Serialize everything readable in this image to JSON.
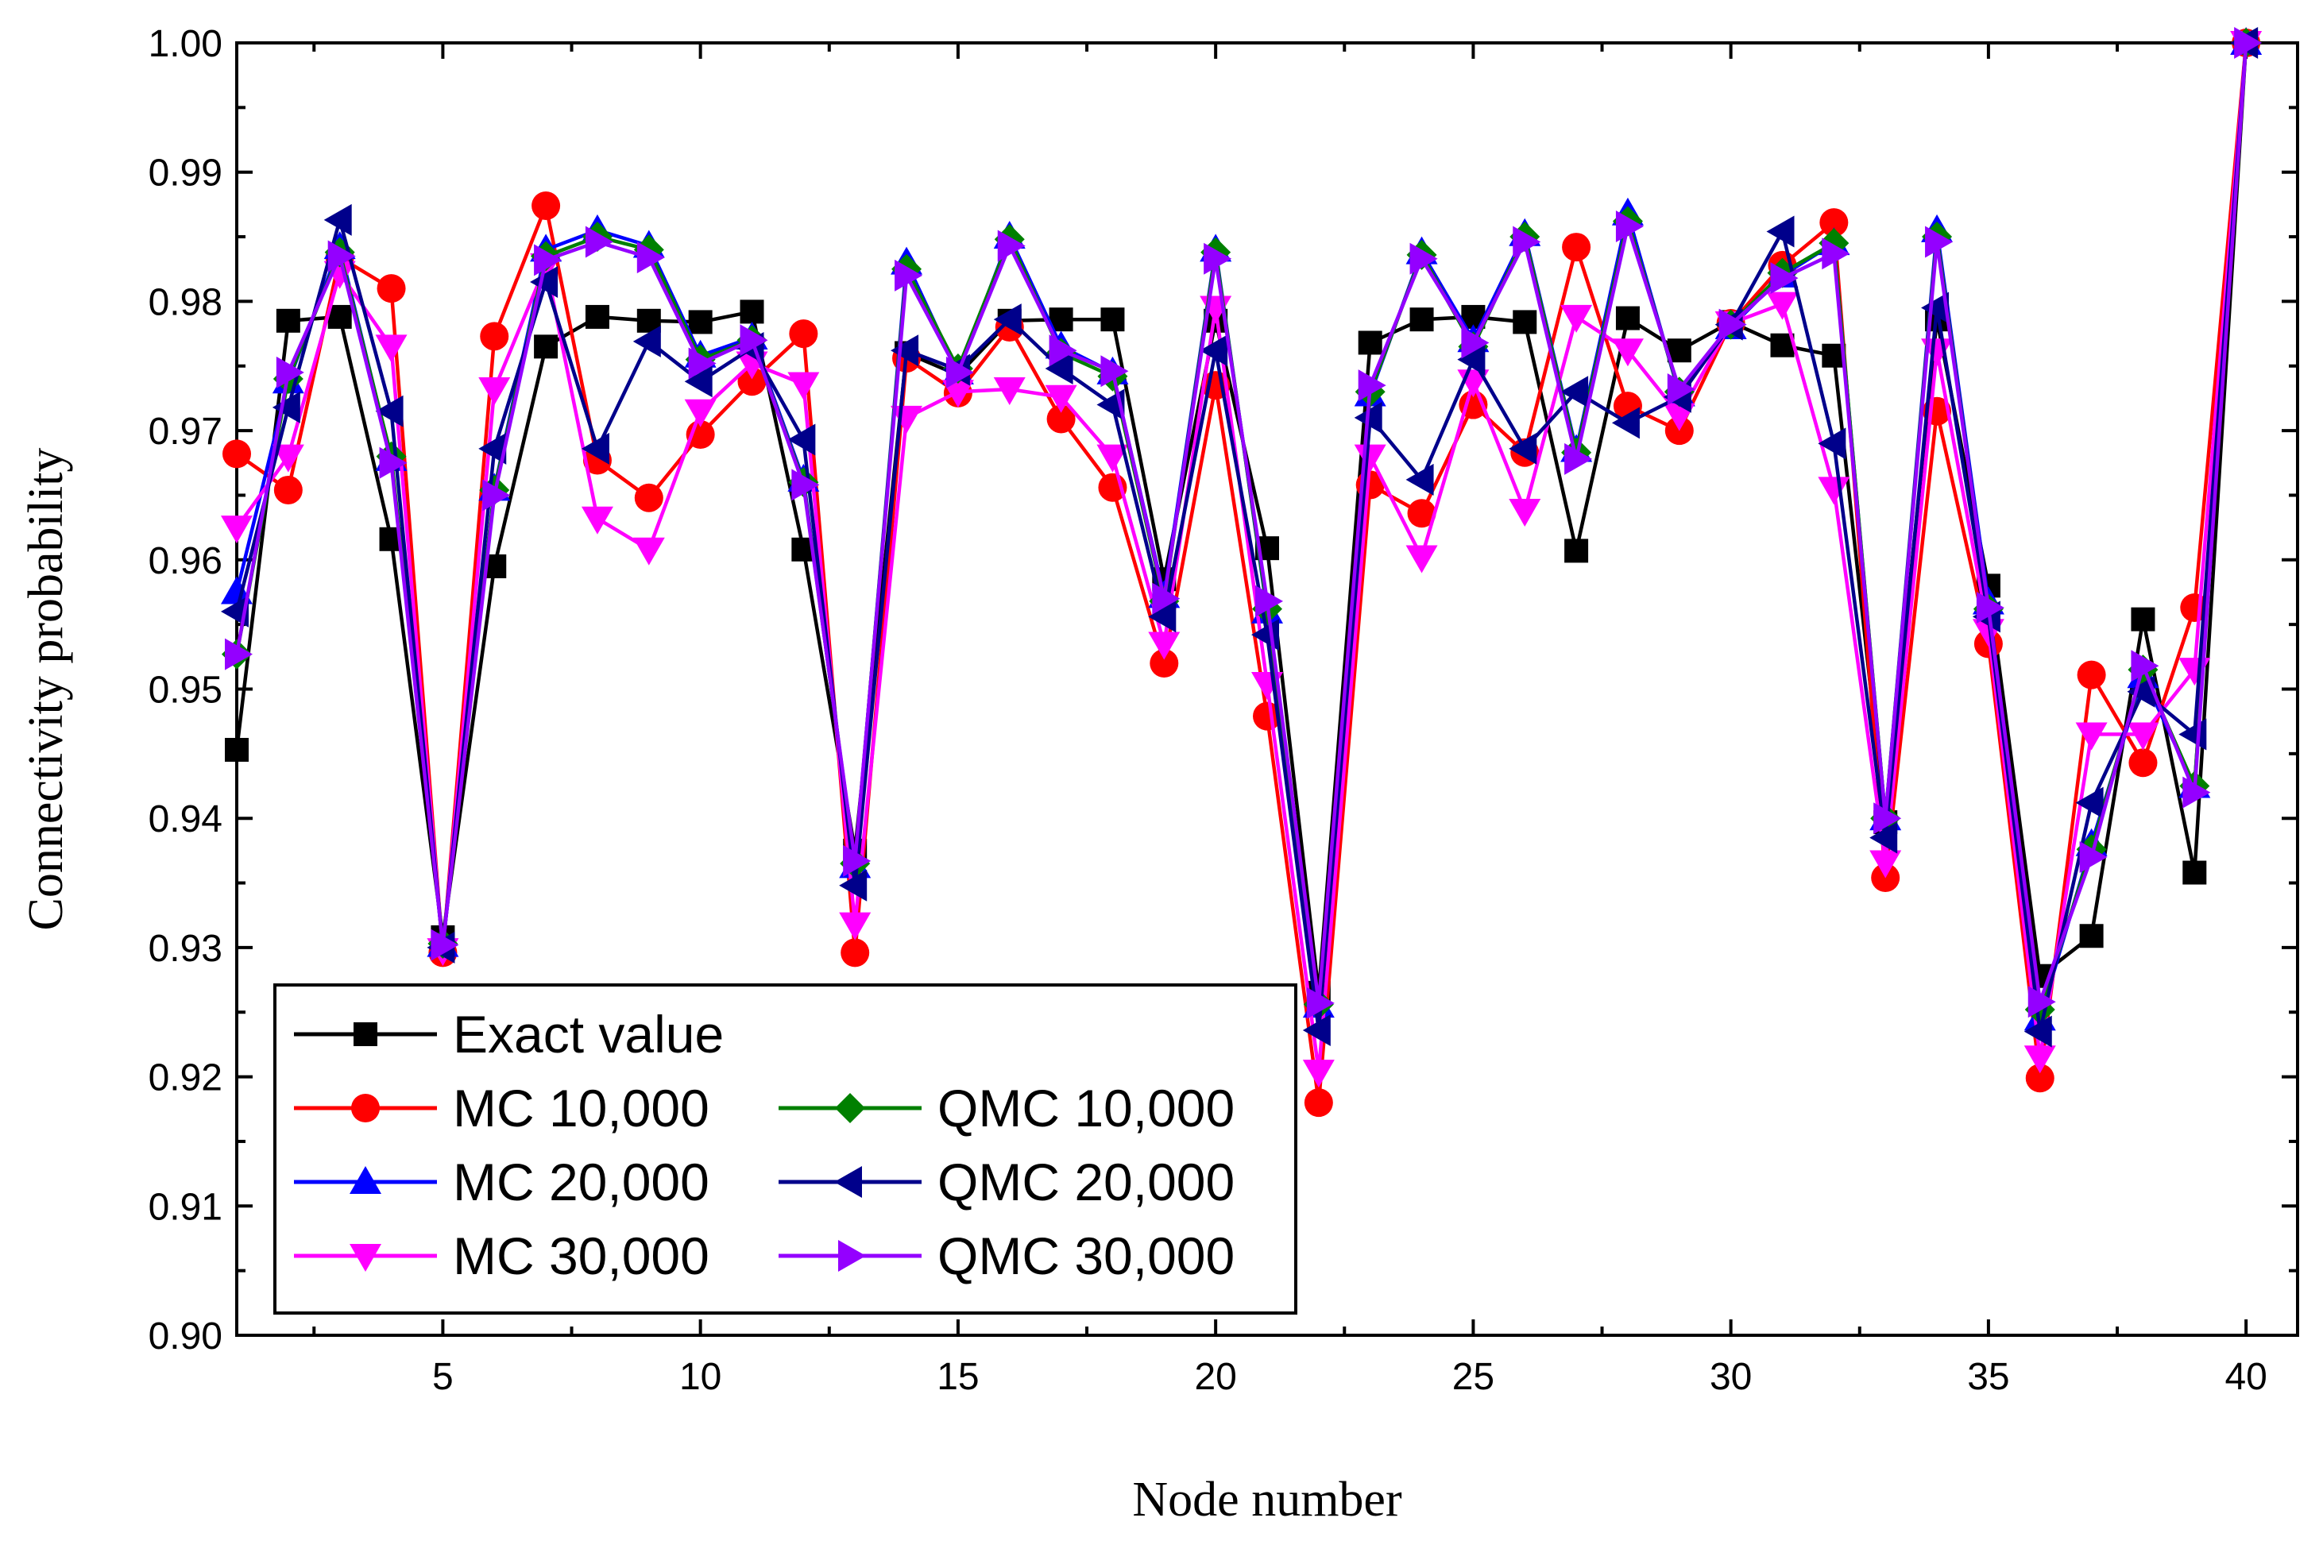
{
  "chart_data": {
    "type": "line",
    "title": "",
    "xlabel": "Node number",
    "ylabel": "Connectivity probability",
    "xlim": [
      1,
      41
    ],
    "ylim": [
      0.9,
      1.0
    ],
    "x_ticks": [
      5,
      10,
      15,
      20,
      25,
      30,
      35,
      40
    ],
    "x_tick_labels": [
      "5",
      "10",
      "15",
      "20",
      "25",
      "30",
      "35",
      "40"
    ],
    "y_ticks": [
      0.9,
      0.91,
      0.92,
      0.93,
      0.94,
      0.95,
      0.96,
      0.97,
      0.98,
      0.99,
      1.0
    ],
    "y_tick_labels": [
      "0.90",
      "0.91",
      "0.92",
      "0.93",
      "0.94",
      "0.95",
      "0.96",
      "0.97",
      "0.98",
      "0.99",
      "1.00"
    ],
    "grid": false,
    "legend_position": "bottom-left",
    "x": [
      1,
      2,
      3,
      4,
      5,
      6,
      7,
      8,
      9,
      10,
      11,
      12,
      13,
      14,
      15,
      16,
      17,
      18,
      19,
      20,
      21,
      22,
      23,
      24,
      25,
      26,
      27,
      28,
      29,
      30,
      31,
      32,
      33,
      34,
      35,
      36,
      37,
      38,
      39,
      40
    ],
    "series": [
      {
        "name": "Exact value",
        "color": "#000000",
        "marker": "square",
        "values": [
          0.9453,
          0.9785,
          0.9788,
          0.9616,
          0.9308,
          0.9595,
          0.9765,
          0.9788,
          0.9785,
          0.9784,
          0.9792,
          0.9608,
          0.9375,
          0.976,
          0.9743,
          0.9785,
          0.9786,
          0.9786,
          0.9585,
          0.9785,
          0.9609,
          0.9265,
          0.9768,
          0.9786,
          0.9788,
          0.9784,
          0.9607,
          0.9787,
          0.9762,
          0.9784,
          0.9766,
          0.9758,
          0.9397,
          0.9786,
          0.958,
          0.9278,
          0.9309,
          0.9554,
          0.9358,
          1.0
        ]
      },
      {
        "name": "MC 10,000",
        "color": "#ff0000",
        "marker": "circle",
        "values": [
          0.9682,
          0.9654,
          0.9834,
          0.981,
          0.9296,
          0.9773,
          0.9874,
          0.9677,
          0.9648,
          0.9697,
          0.9738,
          0.9775,
          0.9296,
          0.9756,
          0.9729,
          0.978,
          0.9709,
          0.9656,
          0.952,
          0.9735,
          0.9479,
          0.918,
          0.9658,
          0.9636,
          0.972,
          0.9683,
          0.9842,
          0.9719,
          0.97,
          0.9783,
          0.9828,
          0.9861,
          0.9354,
          0.9715,
          0.9535,
          0.9199,
          0.9511,
          0.9443,
          0.9563,
          1.0
        ]
      },
      {
        "name": "MC 20,000",
        "color": "#0000ff",
        "marker": "triangle-up",
        "values": [
          0.9575,
          0.9738,
          0.9842,
          0.9678,
          0.9302,
          0.9655,
          0.984,
          0.9855,
          0.9843,
          0.9758,
          0.9772,
          0.9662,
          0.9363,
          0.983,
          0.9745,
          0.985,
          0.9765,
          0.9745,
          0.9572,
          0.984,
          0.956,
          0.9255,
          0.9728,
          0.9838,
          0.977,
          0.9852,
          0.9685,
          0.9868,
          0.9728,
          0.978,
          0.982,
          0.9845,
          0.94,
          0.9855,
          0.9567,
          0.9245,
          0.938,
          0.951,
          0.9425,
          1.0
        ]
      },
      {
        "name": "MC 30,000",
        "color": "#ff00ff",
        "marker": "triangle-down",
        "values": [
          0.9625,
          0.968,
          0.9822,
          0.9765,
          0.9298,
          0.9732,
          0.9828,
          0.9632,
          0.9608,
          0.9715,
          0.9752,
          0.9736,
          0.9318,
          0.971,
          0.973,
          0.9732,
          0.9726,
          0.968,
          0.9535,
          0.9795,
          0.9504,
          0.9204,
          0.968,
          0.9602,
          0.9738,
          0.9638,
          0.9788,
          0.9762,
          0.9712,
          0.9783,
          0.9798,
          0.9655,
          0.9366,
          0.9762,
          0.9545,
          0.9215,
          0.9465,
          0.9465,
          0.9515,
          1.0
        ]
      },
      {
        "name": "QMC 10,000",
        "color": "#008000",
        "marker": "diamond",
        "values": [
          0.9527,
          0.974,
          0.9838,
          0.968,
          0.9303,
          0.9654,
          0.9835,
          0.985,
          0.984,
          0.9755,
          0.977,
          0.966,
          0.9365,
          0.9825,
          0.9748,
          0.9848,
          0.976,
          0.9742,
          0.9568,
          0.9838,
          0.9562,
          0.9256,
          0.973,
          0.9836,
          0.9765,
          0.985,
          0.9683,
          0.9862,
          0.973,
          0.9782,
          0.9822,
          0.9845,
          0.94,
          0.985,
          0.9562,
          0.9252,
          0.9376,
          0.9515,
          0.9425,
          1.0
        ]
      },
      {
        "name": "QMC 20,000",
        "color": "#00008b",
        "marker": "triangle-left",
        "values": [
          0.956,
          0.9718,
          0.9863,
          0.9715,
          0.93,
          0.9686,
          0.9815,
          0.9686,
          0.9769,
          0.9738,
          0.9764,
          0.9693,
          0.9348,
          0.9762,
          0.9747,
          0.9786,
          0.9748,
          0.972,
          0.9556,
          0.9762,
          0.9542,
          0.9236,
          0.971,
          0.9662,
          0.9755,
          0.9686,
          0.973,
          0.9706,
          0.9726,
          0.9782,
          0.9854,
          0.969,
          0.9385,
          0.9795,
          0.9556,
          0.9235,
          0.9412,
          0.9498,
          0.9465,
          1.0
        ]
      },
      {
        "name": "QMC 30,000",
        "color": "#9400ff",
        "marker": "triangle-right",
        "values": [
          0.9527,
          0.9745,
          0.9835,
          0.9675,
          0.9302,
          0.965,
          0.9832,
          0.9846,
          0.9834,
          0.9752,
          0.977,
          0.9658,
          0.9367,
          0.982,
          0.9745,
          0.9843,
          0.9762,
          0.9746,
          0.957,
          0.9833,
          0.9568,
          0.9257,
          0.9735,
          0.9833,
          0.9768,
          0.9846,
          0.9678,
          0.9858,
          0.9732,
          0.9782,
          0.9818,
          0.9837,
          0.94,
          0.9846,
          0.9563,
          0.9258,
          0.937,
          0.9518,
          0.942,
          1.0
        ]
      }
    ]
  }
}
